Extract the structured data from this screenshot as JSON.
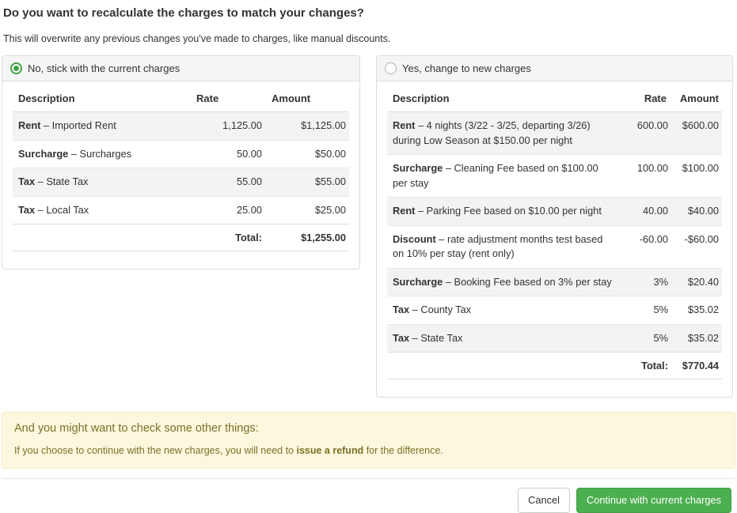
{
  "page": {
    "title": "Do you want to recalculate the charges to match your changes?",
    "subtitle": "This will overwrite any previous changes you've made to charges, like manual discounts."
  },
  "separator": "–",
  "options": {
    "current": {
      "label": "No, stick with the current charges",
      "selected": true,
      "table": {
        "headers": {
          "description": "Description",
          "rate": "Rate",
          "amount": "Amount"
        },
        "rows": [
          {
            "label": "Rent",
            "text": "Imported Rent",
            "rate": "1,125.00",
            "amount": "$1,125.00"
          },
          {
            "label": "Surcharge",
            "text": "Surcharges",
            "rate": "50.00",
            "amount": "$50.00"
          },
          {
            "label": "Tax",
            "text": "State Tax",
            "rate": "55.00",
            "amount": "$55.00"
          },
          {
            "label": "Tax",
            "text": "Local Tax",
            "rate": "25.00",
            "amount": "$25.00"
          }
        ],
        "total_label": "Total:",
        "total_amount": "$1,255.00"
      }
    },
    "new": {
      "label": "Yes, change to new charges",
      "selected": false,
      "table": {
        "headers": {
          "description": "Description",
          "rate": "Rate",
          "amount": "Amount"
        },
        "rows": [
          {
            "label": "Rent",
            "text": "4 nights (3/22 - 3/25, departing 3/26) during Low Season at $150.00 per night",
            "rate": "600.00",
            "amount": "$600.00"
          },
          {
            "label": "Surcharge",
            "text": "Cleaning Fee based on $100.00 per stay",
            "rate": "100.00",
            "amount": "$100.00"
          },
          {
            "label": "Rent",
            "text": "Parking Fee based on $10.00 per night",
            "rate": "40.00",
            "amount": "$40.00"
          },
          {
            "label": "Discount",
            "text": "rate adjustment months test based on 10% per stay (rent only)",
            "rate": "-60.00",
            "amount": "-$60.00"
          },
          {
            "label": "Surcharge",
            "text": "Booking Fee based on 3% per stay",
            "rate": "3%",
            "amount": "$20.40"
          },
          {
            "label": "Tax",
            "text": "County Tax",
            "rate": "5%",
            "amount": "$35.02"
          },
          {
            "label": "Tax",
            "text": "State Tax",
            "rate": "5%",
            "amount": "$35.02"
          }
        ],
        "total_label": "Total:",
        "total_amount": "$770.44"
      }
    }
  },
  "warning": {
    "heading": "And you might want to check some other things:",
    "body_before": "If you choose to continue with the new charges, you will need to ",
    "body_bold": "issue a refund",
    "body_after": " for the difference."
  },
  "footer": {
    "cancel_label": "Cancel",
    "continue_label": "Continue with current charges"
  },
  "colors": {
    "accent_green": "#4caf50",
    "radio_green": "#43a047",
    "warning_bg": "#fcf7dd",
    "warning_text": "#7c712a",
    "row_stripe": "#f3f3f3",
    "panel_border": "#dddddd"
  }
}
